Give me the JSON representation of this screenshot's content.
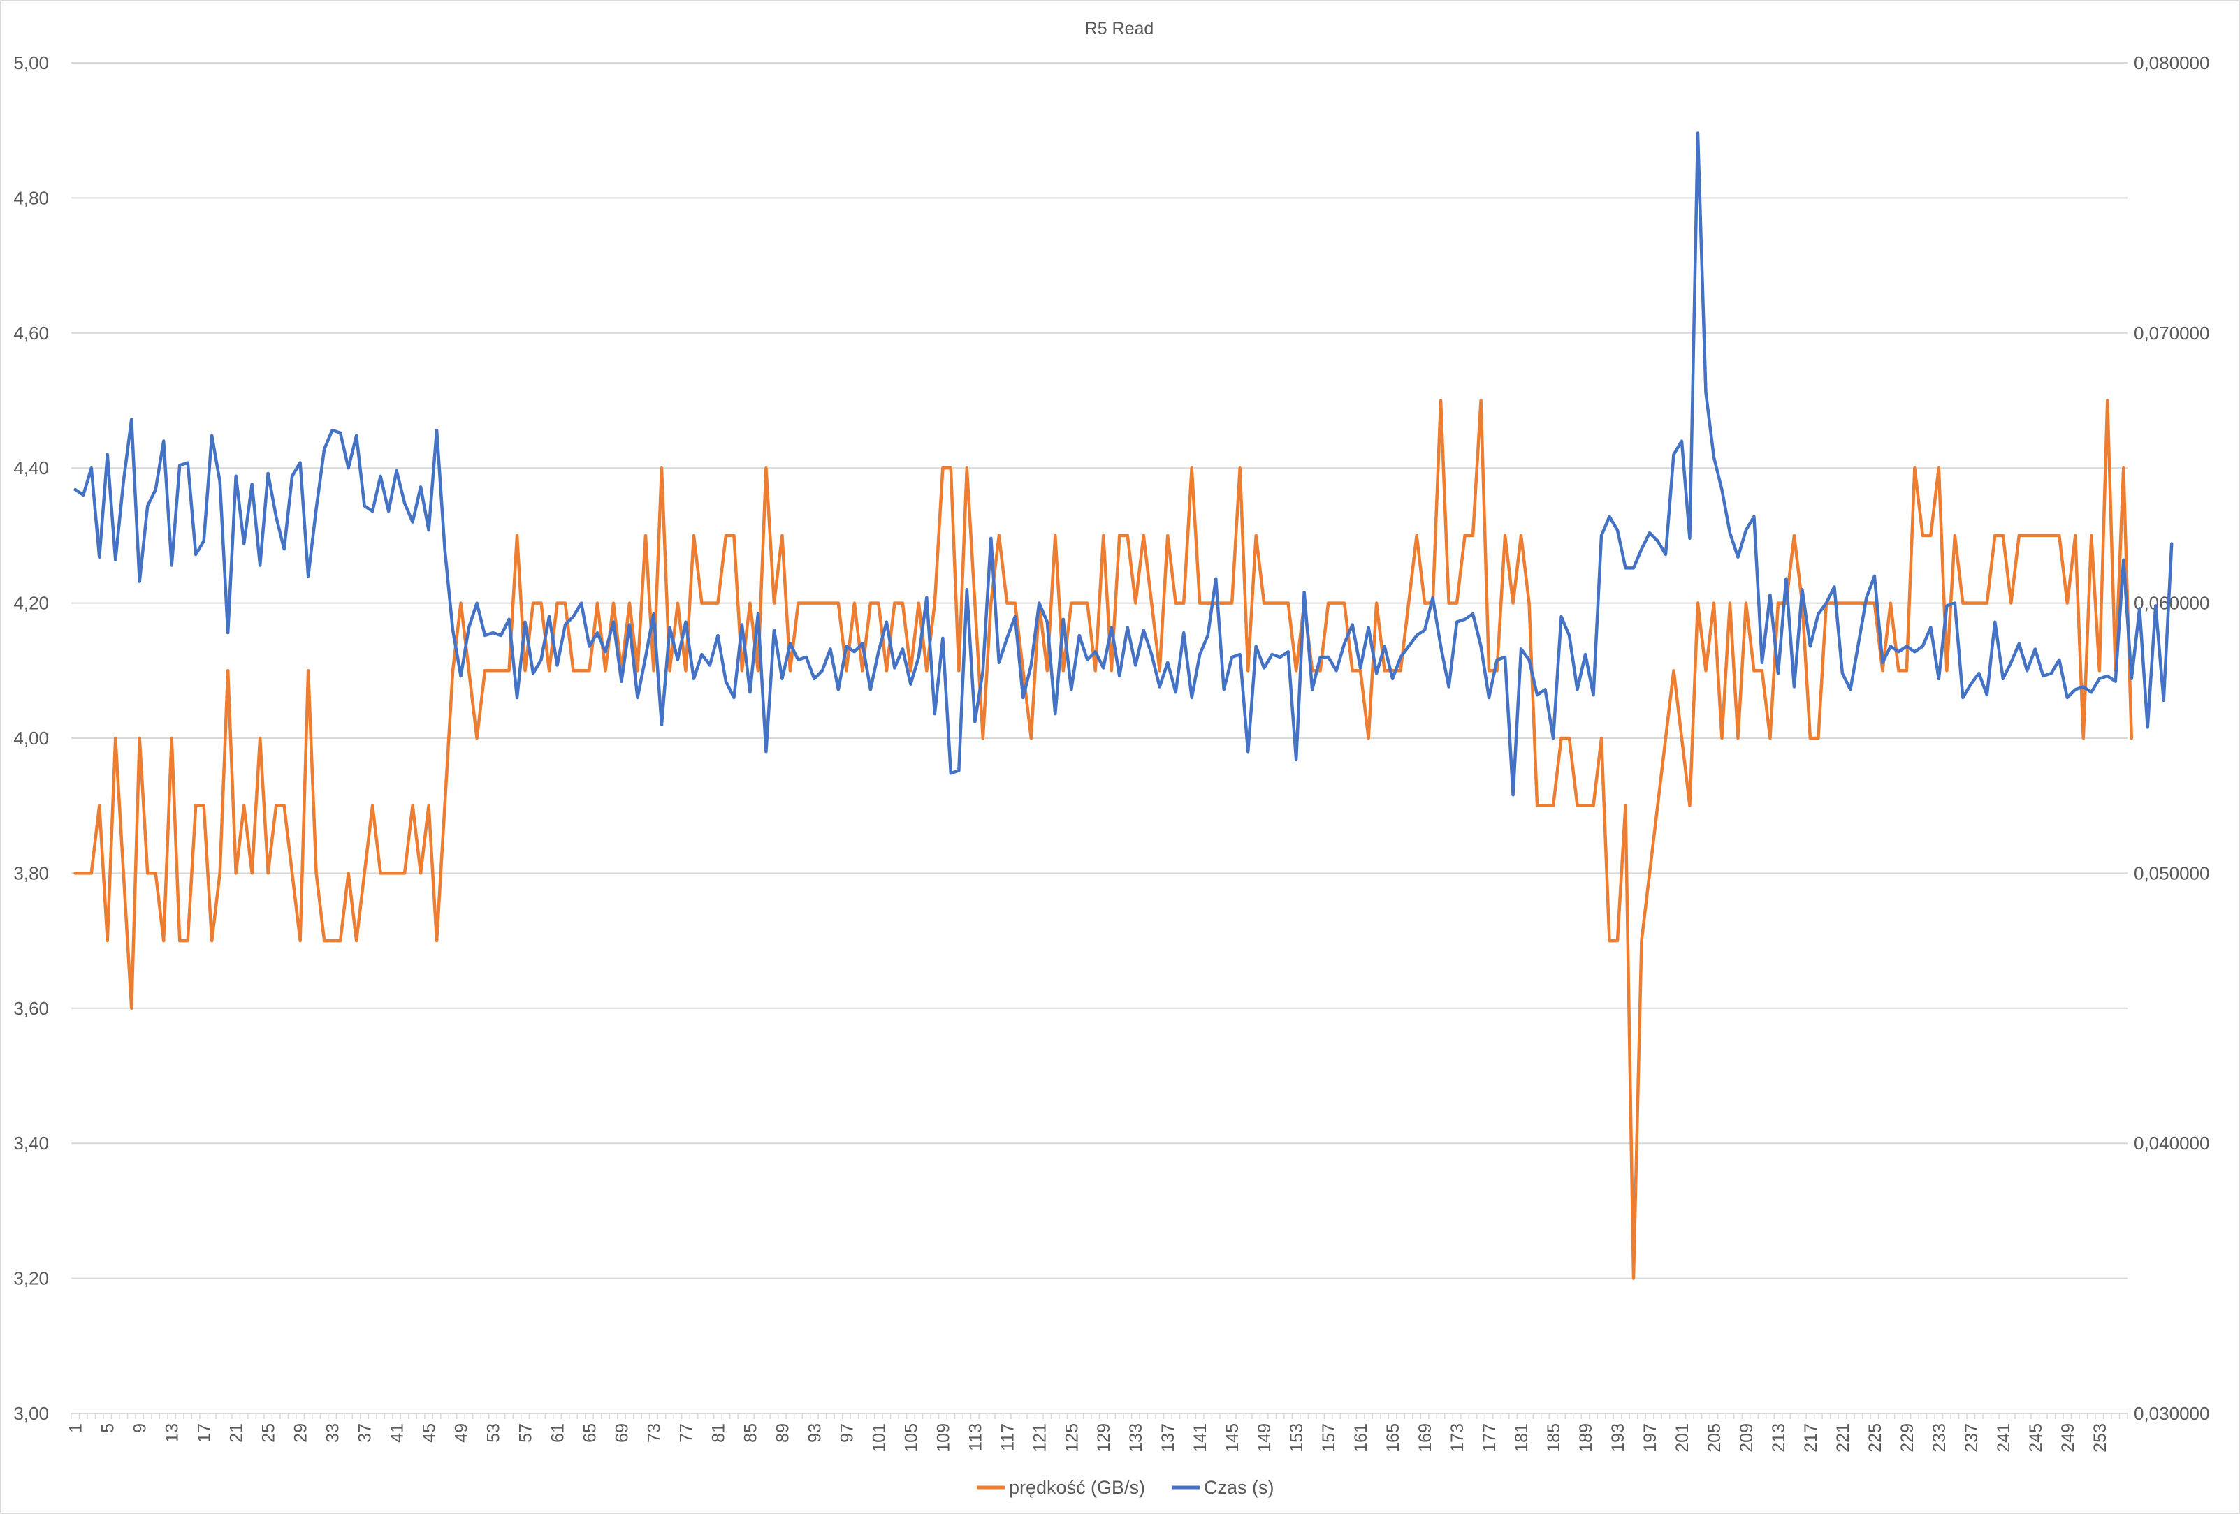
{
  "chart_data": {
    "type": "line",
    "title": "R5 Read",
    "grid": "horizontal",
    "legend_position": "bottom",
    "y_left": {
      "min": 3.0,
      "max": 5.0,
      "step": 0.2,
      "tick_labels": [
        "3,00",
        "3,20",
        "3,40",
        "3,60",
        "3,80",
        "4,00",
        "4,20",
        "4,40",
        "4,60",
        "4,80",
        "5,00"
      ]
    },
    "y_right": {
      "min": 0.03,
      "max": 0.08,
      "step": 0.01,
      "tick_labels": [
        "0,030000",
        "0,040000",
        "0,050000",
        "0,060000",
        "0,070000",
        "0,080000"
      ]
    },
    "x": {
      "count": 256,
      "tick_labels": [
        "1",
        "5",
        "9",
        "13",
        "17",
        "21",
        "25",
        "29",
        "33",
        "37",
        "41",
        "45",
        "49",
        "53",
        "57",
        "61",
        "65",
        "69",
        "73",
        "77",
        "81",
        "85",
        "89",
        "93",
        "97",
        "101",
        "105",
        "109",
        "113",
        "117",
        "121",
        "125",
        "129",
        "133",
        "137",
        "141",
        "145",
        "149",
        "153",
        "157",
        "161",
        "165",
        "169",
        "173",
        "177",
        "181",
        "185",
        "189",
        "193",
        "197",
        "201",
        "205",
        "209",
        "213",
        "217",
        "221",
        "225",
        "229",
        "233",
        "237",
        "241",
        "245",
        "249",
        "253"
      ]
    },
    "series": [
      {
        "name": "prędkość (GB/s)",
        "axis": "left",
        "color": "#ED7D31",
        "values": [
          3.8,
          3.8,
          3.8,
          3.9,
          3.7,
          4.0,
          3.8,
          3.6,
          4.0,
          3.8,
          3.8,
          3.7,
          4.0,
          3.7,
          3.7,
          3.9,
          3.9,
          3.7,
          3.8,
          4.1,
          3.8,
          3.9,
          3.8,
          4.0,
          3.8,
          3.9,
          3.9,
          3.8,
          3.7,
          4.1,
          3.8,
          3.7,
          3.7,
          3.7,
          3.8,
          3.7,
          3.8,
          3.9,
          3.8,
          3.8,
          3.8,
          3.8,
          3.9,
          3.8,
          3.9,
          3.7,
          3.9,
          4.1,
          4.2,
          4.1,
          4.0,
          4.1,
          4.1,
          4.1,
          4.1,
          4.3,
          4.1,
          4.2,
          4.2,
          4.1,
          4.2,
          4.2,
          4.1,
          4.1,
          4.1,
          4.2,
          4.1,
          4.2,
          4.1,
          4.2,
          4.1,
          4.3,
          4.1,
          4.4,
          4.1,
          4.2,
          4.1,
          4.3,
          4.2,
          4.2,
          4.2,
          4.3,
          4.3,
          4.1,
          4.2,
          4.1,
          4.4,
          4.2,
          4.3,
          4.1,
          4.2,
          4.2,
          4.2,
          4.2,
          4.2,
          4.2,
          4.1,
          4.2,
          4.1,
          4.2,
          4.2,
          4.1,
          4.2,
          4.2,
          4.1,
          4.2,
          4.1,
          4.2,
          4.4,
          4.4,
          4.1,
          4.4,
          4.2,
          4.0,
          4.2,
          4.3,
          4.2,
          4.2,
          4.1,
          4.0,
          4.2,
          4.1,
          4.3,
          4.1,
          4.2,
          4.2,
          4.2,
          4.1,
          4.3,
          4.1,
          4.3,
          4.3,
          4.2,
          4.3,
          4.2,
          4.1,
          4.3,
          4.2,
          4.2,
          4.4,
          4.2,
          4.2,
          4.2,
          4.2,
          4.2,
          4.4,
          4.1,
          4.3,
          4.2,
          4.2,
          4.2,
          4.2,
          4.1,
          4.2,
          4.1,
          4.1,
          4.2,
          4.2,
          4.2,
          4.1,
          4.1,
          4.0,
          4.2,
          4.1,
          4.1,
          4.1,
          4.2,
          4.3,
          4.2,
          4.2,
          4.5,
          4.2,
          4.2,
          4.3,
          4.3,
          4.5,
          4.1,
          4.1,
          4.3,
          4.2,
          4.3,
          4.2,
          3.9,
          3.9,
          3.9,
          4.0,
          4.0,
          3.9,
          3.9,
          3.9,
          4.0,
          3.7,
          3.7,
          3.9,
          3.2,
          3.7,
          3.8,
          3.9,
          4.0,
          4.1,
          4.0,
          3.9,
          4.2,
          4.1,
          4.2,
          4.0,
          4.2,
          4.0,
          4.2,
          4.1,
          4.1,
          4.0,
          4.2,
          4.2,
          4.3,
          4.2,
          4.0,
          4.0,
          4.2,
          4.2,
          4.2,
          4.2,
          4.2,
          4.2,
          4.2,
          4.1,
          4.2,
          4.1,
          4.1,
          4.4,
          4.3,
          4.3,
          4.4,
          4.1,
          4.3,
          4.2,
          4.2,
          4.2,
          4.2,
          4.3,
          4.3,
          4.2,
          4.3,
          4.3,
          4.3,
          4.3,
          4.3,
          4.3,
          4.2,
          4.3,
          4.0,
          4.3,
          4.1,
          4.5,
          4.1,
          4.4,
          4.0
        ]
      },
      {
        "name": "Czas (s)",
        "axis": "right",
        "color": "#4472C4",
        "values": [
          0.0642,
          0.064,
          0.065,
          0.0617,
          0.0655,
          0.0616,
          0.0645,
          0.0668,
          0.0608,
          0.0636,
          0.0642,
          0.066,
          0.0614,
          0.0651,
          0.0652,
          0.0618,
          0.0623,
          0.0662,
          0.0645,
          0.0589,
          0.0647,
          0.0622,
          0.0644,
          0.0614,
          0.0648,
          0.0632,
          0.062,
          0.0647,
          0.0652,
          0.061,
          0.0635,
          0.0657,
          0.0664,
          0.0663,
          0.065,
          0.0662,
          0.0636,
          0.0634,
          0.0647,
          0.0634,
          0.0649,
          0.0637,
          0.063,
          0.0643,
          0.0627,
          0.0664,
          0.062,
          0.059,
          0.0573,
          0.0591,
          0.06,
          0.0588,
          0.0589,
          0.0588,
          0.0594,
          0.0565,
          0.0593,
          0.0574,
          0.0579,
          0.0595,
          0.0577,
          0.0592,
          0.0595,
          0.06,
          0.0584,
          0.0589,
          0.0582,
          0.0593,
          0.0571,
          0.0592,
          0.0565,
          0.058,
          0.0596,
          0.0555,
          0.0591,
          0.0579,
          0.0593,
          0.0572,
          0.0581,
          0.0577,
          0.0588,
          0.0571,
          0.0565,
          0.0592,
          0.0567,
          0.0596,
          0.0545,
          0.059,
          0.0572,
          0.0585,
          0.0579,
          0.058,
          0.0572,
          0.0575,
          0.0583,
          0.0568,
          0.0584,
          0.0582,
          0.0585,
          0.0568,
          0.0582,
          0.0593,
          0.0576,
          0.0583,
          0.057,
          0.058,
          0.0602,
          0.0559,
          0.0587,
          0.0537,
          0.0538,
          0.0605,
          0.0556,
          0.0575,
          0.0624,
          0.0578,
          0.0587,
          0.0595,
          0.0565,
          0.0577,
          0.06,
          0.0593,
          0.0559,
          0.0594,
          0.0568,
          0.0588,
          0.0579,
          0.0582,
          0.0576,
          0.0591,
          0.0573,
          0.0591,
          0.0577,
          0.059,
          0.0581,
          0.0569,
          0.0578,
          0.0567,
          0.0589,
          0.0565,
          0.0581,
          0.0588,
          0.0609,
          0.0568,
          0.058,
          0.0581,
          0.0545,
          0.0584,
          0.0576,
          0.0581,
          0.058,
          0.0582,
          0.0542,
          0.0604,
          0.0568,
          0.058,
          0.058,
          0.0575,
          0.0585,
          0.0592,
          0.0576,
          0.0591,
          0.0574,
          0.0584,
          0.0572,
          0.058,
          0.0584,
          0.0588,
          0.059,
          0.0602,
          0.0584,
          0.0569,
          0.0593,
          0.0594,
          0.0596,
          0.0584,
          0.0565,
          0.0579,
          0.058,
          0.0529,
          0.0583,
          0.0579,
          0.0566,
          0.0568,
          0.055,
          0.0595,
          0.0588,
          0.0568,
          0.0581,
          0.0566,
          0.0625,
          0.0632,
          0.0627,
          0.0613,
          0.0613,
          0.062,
          0.0626,
          0.0623,
          0.0618,
          0.0655,
          0.066,
          0.0624,
          0.0774,
          0.0678,
          0.0654,
          0.0642,
          0.0626,
          0.0617,
          0.0627,
          0.0632,
          0.0578,
          0.0603,
          0.0574,
          0.0609,
          0.0569,
          0.0605,
          0.0584,
          0.0596,
          0.06,
          0.0606,
          0.0574,
          0.0568,
          0.0585,
          0.0602,
          0.061,
          0.0578,
          0.0584,
          0.0582,
          0.0584,
          0.0582,
          0.0584,
          0.0591,
          0.0572,
          0.0599,
          0.06,
          0.0565,
          0.057,
          0.0574,
          0.0566,
          0.0593,
          0.0572,
          0.0578,
          0.0585,
          0.0575,
          0.0583,
          0.0573,
          0.0574,
          0.0579,
          0.0565,
          0.0568,
          0.0569,
          0.0567,
          0.0572,
          0.0573,
          0.0571,
          0.0616,
          0.0572,
          0.0598,
          0.0554,
          0.0599,
          0.0564,
          0.0622
        ]
      }
    ]
  }
}
